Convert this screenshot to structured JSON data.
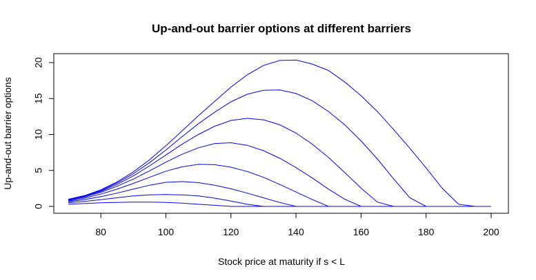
{
  "chart_data": {
    "type": "line",
    "title": "Up-and-out barrier options at different barriers",
    "xlabel": "Stock price at maturity if s < L",
    "ylabel": "Up-and-out barrier options",
    "xlim": [
      70,
      200
    ],
    "ylim": [
      0,
      21
    ],
    "xticks": [
      80,
      100,
      120,
      140,
      160,
      180,
      200
    ],
    "yticks": [
      0,
      5,
      10,
      15,
      20
    ],
    "grid": false,
    "legend": "none",
    "line_color": "#0000ff",
    "x": [
      70,
      75,
      80,
      85,
      90,
      95,
      100,
      105,
      110,
      115,
      120,
      125,
      130,
      135,
      140,
      145,
      150,
      155,
      160,
      165,
      170,
      175,
      180,
      185,
      190,
      195,
      200
    ],
    "series": [
      {
        "values": [
          0.3,
          0.4,
          0.5,
          0.55,
          0.6,
          0.6,
          0.55,
          0.45,
          0.3,
          0.15,
          0.0,
          0,
          0,
          0,
          0,
          0,
          0,
          0,
          0,
          0,
          0,
          0,
          0,
          0,
          0,
          0,
          0
        ]
      },
      {
        "values": [
          0.5,
          0.7,
          0.95,
          1.2,
          1.45,
          1.6,
          1.65,
          1.6,
          1.45,
          1.15,
          0.75,
          0.3,
          0.0,
          0,
          0,
          0,
          0,
          0,
          0,
          0,
          0,
          0,
          0,
          0,
          0,
          0,
          0
        ]
      },
      {
        "values": [
          0.65,
          0.95,
          1.35,
          1.85,
          2.4,
          2.95,
          3.35,
          3.45,
          3.3,
          2.95,
          2.45,
          1.85,
          1.2,
          0.55,
          0.0,
          0,
          0,
          0,
          0,
          0,
          0,
          0,
          0,
          0,
          0,
          0,
          0
        ]
      },
      {
        "values": [
          0.75,
          1.15,
          1.7,
          2.4,
          3.2,
          4.05,
          4.9,
          5.5,
          5.85,
          5.8,
          5.45,
          4.85,
          4.05,
          3.05,
          2.0,
          0.95,
          0.0,
          0,
          0,
          0,
          0,
          0,
          0,
          0,
          0,
          0,
          0
        ]
      },
      {
        "values": [
          0.85,
          1.3,
          1.95,
          2.8,
          3.8,
          4.95,
          6.15,
          7.25,
          8.15,
          8.75,
          8.85,
          8.5,
          7.75,
          6.7,
          5.4,
          3.95,
          2.4,
          1.0,
          0.0,
          0,
          0,
          0,
          0,
          0,
          0,
          0,
          0
        ]
      },
      {
        "values": [
          0.9,
          1.4,
          2.1,
          3.05,
          4.25,
          5.65,
          7.15,
          8.65,
          10.0,
          11.15,
          11.95,
          12.25,
          12.05,
          11.35,
          10.2,
          8.65,
          6.8,
          4.7,
          2.55,
          0.6,
          0.0,
          0,
          0,
          0,
          0,
          0,
          0
        ]
      },
      {
        "values": [
          0.95,
          1.45,
          2.2,
          3.25,
          4.55,
          6.1,
          7.85,
          9.7,
          11.5,
          13.1,
          14.55,
          15.6,
          16.15,
          16.2,
          15.7,
          14.7,
          13.2,
          11.35,
          9.1,
          6.6,
          3.85,
          1.2,
          0.0,
          0,
          0,
          0,
          0
        ]
      },
      {
        "values": [
          1.0,
          1.5,
          2.3,
          3.4,
          4.8,
          6.5,
          8.45,
          10.5,
          12.6,
          14.6,
          16.6,
          18.3,
          19.6,
          20.3,
          20.35,
          19.8,
          18.9,
          17.3,
          15.4,
          13.2,
          10.7,
          8.1,
          5.35,
          2.5,
          0.3,
          0.0,
          0.0
        ]
      }
    ]
  }
}
